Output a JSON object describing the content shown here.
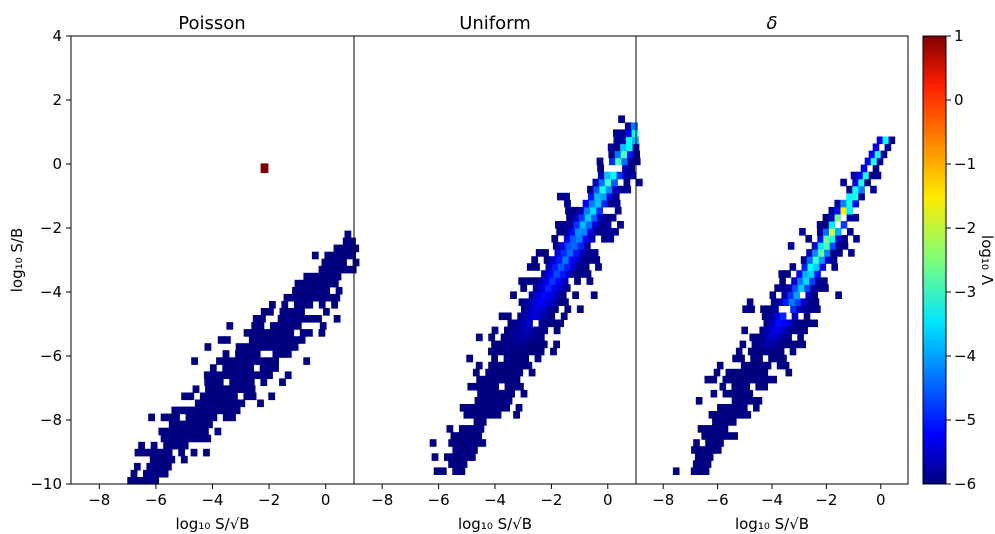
{
  "chart_data": {
    "type": "heatmap",
    "colormap": "jet",
    "colorbar": {
      "label": "log₁₀ Λ",
      "range": [
        -6,
        1
      ],
      "ticks": [
        "1",
        "0",
        "−1",
        "−2",
        "−3",
        "−4",
        "−5",
        "−6"
      ]
    },
    "shared": {
      "xlabel": "log₁₀ S/√B",
      "ylabel": "log₁₀ S/B",
      "xlim": [
        -9,
        1
      ],
      "ylim": [
        -10,
        4
      ],
      "x_ticks": [
        "−8",
        "−6",
        "−4",
        "−2",
        "0"
      ],
      "y_ticks": [
        "4",
        "2",
        "0",
        "−2",
        "−4",
        "−6",
        "−8",
        "−10"
      ]
    },
    "panels": [
      {
        "title": "Poisson",
        "band": {
          "y_top": -1.2,
          "y_bottom": -10,
          "slope": 1.0,
          "offset": -3.5,
          "width": 0.55
        },
        "peak": {
          "y_at_low": -6,
          "y_at_high": -6,
          "value_low": -6,
          "value_high": -6
        },
        "outliers": [
          {
            "x": -2.3,
            "y": -0.2,
            "value": 1
          }
        ]
      },
      {
        "title": "Uniform",
        "band": {
          "y_top": 3.3,
          "y_bottom": -9.7,
          "slope": 1.6,
          "offset": -0.5,
          "width": 0.5
        },
        "peak": {
          "y_at_low": -6,
          "y_at_high": 0.5,
          "value_low": -6,
          "value_high": -2.3
        },
        "outliers": []
      },
      {
        "title": "δ",
        "band": {
          "y_top": 0.8,
          "y_bottom": -9.7,
          "slope": 1.5,
          "offset": 0.6,
          "width": 0.45
        },
        "peak": {
          "y_at_low": -6,
          "y_at_high": -1.5,
          "value_low": -6,
          "value_high": -0.8
        },
        "outliers": []
      }
    ]
  }
}
